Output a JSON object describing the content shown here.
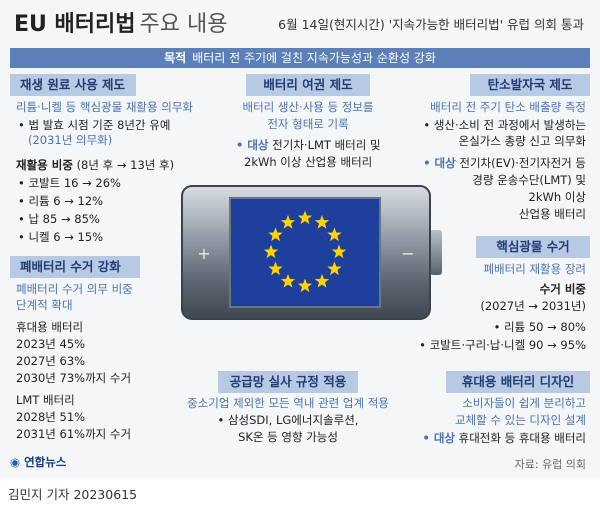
{
  "header": {
    "title": "EU 배터리법",
    "subtitle": "주요 내용",
    "headline": "6월 14일(현지시간) '지속가능한 배터리법' 유럽 의회 통과"
  },
  "purpose": {
    "label": "목적",
    "text": "배터리 전 주기에 걸친 지속가능성과 순환성 강화"
  },
  "recycled": {
    "title": "재생 원료 사용 제도",
    "line1": "리튬·니켈 등 핵심광물 재활용 의무화",
    "line2": "• 법 발효 시점 기준 8년간 유예",
    "line3": "(2031년 의무화)",
    "ratio_label": "재활용 비중",
    "ratio_period": "(8년 후 → 13년 후)",
    "items": [
      "• 코발트 16 → 26%",
      "• 리튬 6 → 12%",
      "• 납 85 → 85%",
      "• 니켈 6 → 15%"
    ]
  },
  "collection": {
    "title": "폐배터리 수거 강화",
    "line1": "폐배터리 수거 의무 비중",
    "line2": "단계적 확대",
    "portable_label": "휴대용 배터리",
    "portable": [
      "2023년 45%",
      "2027년 63%",
      "2030년 73%까지 수거"
    ],
    "lmt_label": "LMT 배터리",
    "lmt": [
      "2028년 51%",
      "2031년 61%까지 수거"
    ]
  },
  "passport": {
    "title": "배터리 여권 제도",
    "line1": "배터리 생산·사용 등 정보를",
    "line2": "전자 형태로 기록",
    "target_label": "• 대상",
    "target_text": "전기차·LMT 배터리 및",
    "line4": "2kWh 이상 산업용 배터리"
  },
  "carbon": {
    "title": "탄소발자국 제도",
    "line1": "배터리 전 주기 탄소 배출량 측정",
    "line2": "• 생산·소비 전 과정에서 발생하는",
    "line3": "온실가스 총량 신고 의무화",
    "target_label": "• 대상",
    "target_text": "전기차(EV)·전기자전거 등",
    "line5": "경량 운송수단(LMT) 및",
    "line6": "2kWh 이상",
    "line7": "산업용 배터리"
  },
  "minerals": {
    "title": "핵심광물 수거",
    "line1": "폐배터리 재활용 장려",
    "line2": "수거 비중",
    "line3": "(2027년 → 2031년)",
    "item1": "• 리튬 50 → 80%",
    "item2": "• 코발트·구리·납·니켈 90 → 95%"
  },
  "supply": {
    "title": "공급망 실사 규정 적용",
    "line1": "중소기업 제외한 모든 역내 관련 업계 적용",
    "line2": "• 삼성SDI, LG에너지솔루션,",
    "line3": "SK온 등 영향 가능성"
  },
  "portable_design": {
    "title": "휴대용 배터리 디자인",
    "line1": "소비자들이 쉽게 분리하고",
    "line2": "교체할 수 있는 디자인 설계",
    "target_label": "• 대상",
    "target_text": "휴대전화 등 휴대용 배터리"
  },
  "battery_graphic": {
    "plus": "+",
    "minus": "−"
  },
  "footer": {
    "logo": "연합뉴스",
    "source": "자료: 유럽 의회",
    "byline": "김민지 기자  20230615"
  },
  "colors": {
    "accent": "#4b73b5",
    "header_bg": "#b8c9e4",
    "purpose_bg": "#5b7fb8",
    "eu_blue": "#1f3f9c",
    "eu_star": "#ffd400"
  }
}
